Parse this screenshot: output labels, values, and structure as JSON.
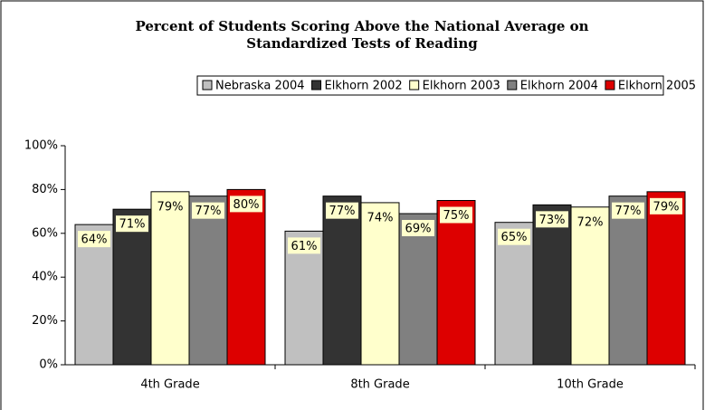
{
  "chart_data": {
    "type": "bar",
    "title": "Percent of Students Scoring Above the National Average on Standardized Tests of Reading",
    "categories": [
      "4th Grade",
      "8th Grade",
      "10th Grade"
    ],
    "series": [
      {
        "name": "Nebraska 2004",
        "color": "#c0c0c0",
        "values": [
          64,
          61,
          65
        ],
        "value_labels": [
          "64%",
          "61%",
          "65%"
        ]
      },
      {
        "name": "Elkhorn 2002",
        "color": "#333333",
        "values": [
          71,
          77,
          73
        ],
        "value_labels": [
          "71%",
          "77%",
          "73%"
        ]
      },
      {
        "name": "Elkhorn 2003",
        "color": "#ffffcc",
        "values": [
          79,
          74,
          72
        ],
        "value_labels": [
          "79%",
          "74%",
          "72%"
        ]
      },
      {
        "name": "Elkhorn 2004",
        "color": "#808080",
        "values": [
          77,
          69,
          77
        ],
        "value_labels": [
          "77%",
          "69%",
          "77%"
        ]
      },
      {
        "name": "Elkhorn 2005",
        "color": "#dd0000",
        "values": [
          80,
          75,
          79
        ],
        "value_labels": [
          "80%",
          "75%",
          "79%"
        ]
      }
    ],
    "ylim": [
      0,
      100
    ],
    "yticks": [
      {
        "value": 0,
        "label": "0%"
      },
      {
        "value": 20,
        "label": "20%"
      },
      {
        "value": 40,
        "label": "40%"
      },
      {
        "value": 60,
        "label": "60%"
      },
      {
        "value": 80,
        "label": "80%"
      },
      {
        "value": 100,
        "label": "100%"
      }
    ],
    "legend": "top"
  }
}
